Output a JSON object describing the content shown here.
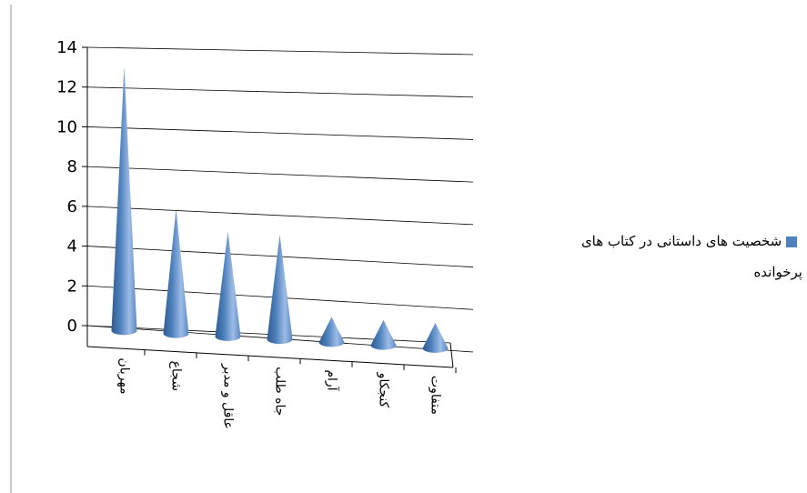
{
  "chart_data": {
    "type": "bar",
    "bar_shape": "cone",
    "categories": [
      "مهربان",
      "شجاع",
      "عاقل و مدبر",
      "جاه طلب",
      "آرام",
      "کنجکاو",
      "متفاوت"
    ],
    "series": [
      {
        "name": "شخصیت های داستانی در کتاب های پرخوانده",
        "values": [
          13,
          6,
          5,
          5,
          1,
          1,
          1
        ]
      }
    ],
    "ylim": [
      0,
      14
    ],
    "yticks": [
      0,
      2,
      4,
      6,
      8,
      10,
      12,
      14
    ],
    "grid": true,
    "legend_position": "right",
    "colors": {
      "series": "#4F81BD",
      "series_light": "#9DBCE6",
      "series_dark": "#2E5A8F",
      "grid": "#000000"
    }
  }
}
